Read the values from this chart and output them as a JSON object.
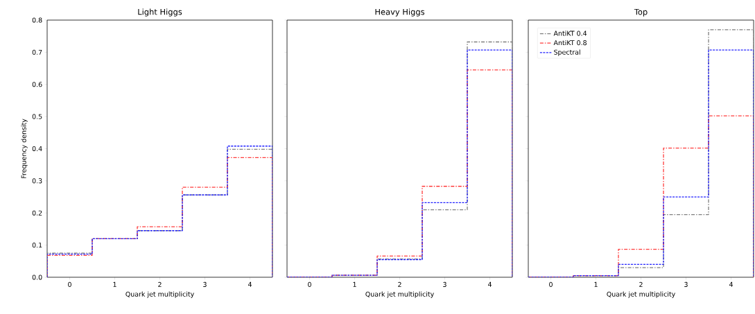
{
  "chart_data": [
    {
      "type": "histogram",
      "title": "Light Higgs",
      "xlabel": "Quark jet multiplicity",
      "ylabel": "Frequency density",
      "bins": [
        -0.5,
        0.5,
        1.5,
        2.5,
        3.5,
        4.5
      ],
      "xlim": [
        -0.5,
        4.5
      ],
      "ylim": [
        0,
        0.8
      ],
      "xticks": [
        0,
        1,
        2,
        3,
        4
      ],
      "yticks": [
        {
          "value": 0,
          "label": "0.0"
        },
        0.1,
        0.2,
        0.3,
        0.4,
        0.5,
        0.6,
        0.7,
        0.8
      ],
      "legend": false,
      "series": [
        {
          "color": "#7f7f7f",
          "line_style": "dashdot",
          "values": [
            0.075,
            0.12,
            0.145,
            0.256,
            0.398
          ]
        },
        {
          "color": "#ff3b3b",
          "line_style": "dashdot",
          "values": [
            0.068,
            0.12,
            0.157,
            0.28,
            0.372
          ]
        },
        {
          "color": "#2020ff",
          "line_style": "dashed",
          "values": [
            0.072,
            0.12,
            0.145,
            0.256,
            0.408
          ]
        }
      ]
    },
    {
      "type": "histogram",
      "title": "Heavy Higgs",
      "xlabel": "Quark jet multiplicity",
      "bins": [
        -0.5,
        0.5,
        1.5,
        2.5,
        3.5,
        4.5
      ],
      "xlim": [
        -0.5,
        4.5
      ],
      "ylim": [
        0,
        0.8
      ],
      "xticks": [
        0,
        1,
        2,
        3,
        4
      ],
      "yticks": [
        0.0,
        0.1,
        0.2,
        0.3,
        0.4,
        0.5,
        0.6,
        0.7,
        0.8
      ],
      "tick_labels": "x",
      "legend": false,
      "series": [
        {
          "color": "#7f7f7f",
          "line_style": "dashdot",
          "values": [
            0.0,
            0.006,
            0.057,
            0.21,
            0.732
          ]
        },
        {
          "color": "#ff3b3b",
          "line_style": "dashdot",
          "values": [
            0.0,
            0.006,
            0.066,
            0.283,
            0.645
          ]
        },
        {
          "color": "#2020ff",
          "line_style": "dashed",
          "values": [
            0.0,
            0.006,
            0.055,
            0.232,
            0.707
          ]
        }
      ]
    },
    {
      "type": "histogram",
      "title": "Top",
      "xlabel": "Quark jet multiplicity",
      "bins": [
        -0.5,
        0.5,
        1.5,
        2.5,
        3.5,
        4.5
      ],
      "xlim": [
        -0.5,
        4.5
      ],
      "ylim": [
        0,
        0.8
      ],
      "xticks": [
        0,
        1,
        2,
        3,
        4
      ],
      "yticks": [
        0.0,
        0.1,
        0.2,
        0.3,
        0.4,
        0.5,
        0.6,
        0.7,
        0.8
      ],
      "tick_labels": "x",
      "legend": "top left",
      "series": [
        {
          "name": "AntiKT 0.4",
          "color": "#7f7f7f",
          "line_style": "dashdot",
          "values": [
            0.0,
            0.005,
            0.03,
            0.195,
            0.77
          ]
        },
        {
          "name": "AntiKT 0.8",
          "color": "#ff3b3b",
          "line_style": "dashdot",
          "values": [
            0.0,
            0.005,
            0.087,
            0.402,
            0.502
          ]
        },
        {
          "name": "Spectral",
          "color": "#2020ff",
          "line_style": "dashed",
          "values": [
            0.0,
            0.005,
            0.04,
            0.25,
            0.707
          ]
        }
      ]
    }
  ]
}
